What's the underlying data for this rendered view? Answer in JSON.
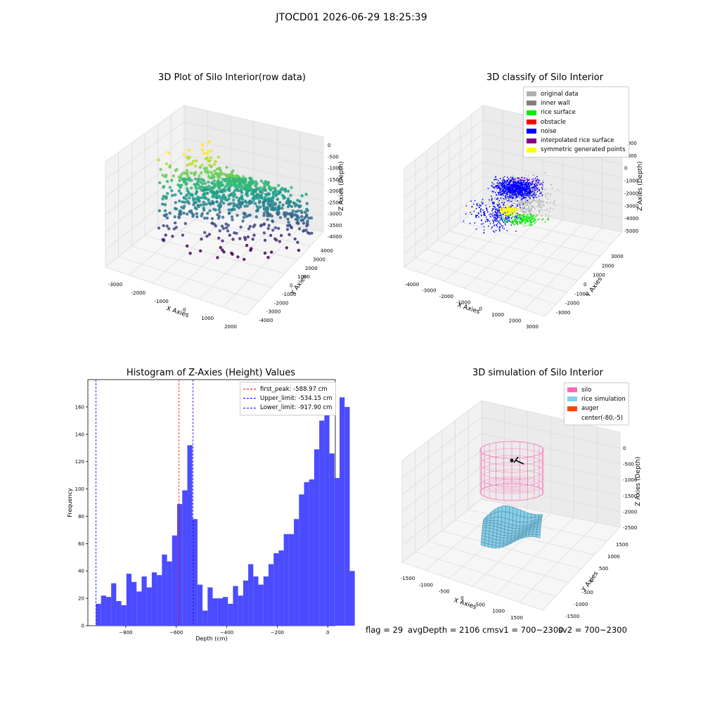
{
  "title": "JTOCD01 2026-06-29 18:25:39",
  "panels": {
    "raw": {
      "title": "3D Plot of Silo Interior(row data)",
      "x_label": "X Axies",
      "y_label": "Y Axies",
      "z_label": "Z Axies (Depth)",
      "x_ticks": [
        "-3000",
        "-2000",
        "-1000",
        "0",
        "1000",
        "2000"
      ],
      "y_ticks": [
        "4000",
        "3000",
        "2000",
        "1000",
        "0",
        "-1000",
        "-2000",
        "-3000",
        "-4000"
      ],
      "z_ticks": [
        "0",
        "-500",
        "-1000",
        "-1500",
        "-2000",
        "-2500",
        "-3000",
        "-3500",
        "-4000"
      ]
    },
    "classify": {
      "title": "3D classify of Silo Interior",
      "x_label": "X Axies",
      "y_label": "Y Axies",
      "z_label": "Z Axies (Depth)",
      "x_ticks": [
        "-4000",
        "-3000",
        "-2000",
        "-1000",
        "0",
        "1000",
        "2000",
        "3000"
      ],
      "y_ticks": [
        "3000",
        "2000",
        "1000",
        "0",
        "-1000",
        "-2000",
        "-3000"
      ],
      "z_ticks": [
        "2000",
        "1000",
        "0",
        "-1000",
        "-2000",
        "-3000",
        "-4000",
        "-5000"
      ],
      "legend": [
        {
          "label": "original data",
          "color": "#b0b0b0"
        },
        {
          "label": "inner wall",
          "color": "#808080"
        },
        {
          "label": "rice surface",
          "color": "#00ee00"
        },
        {
          "label": "obstacle",
          "color": "#ff0000"
        },
        {
          "label": "noise",
          "color": "#0000ff"
        },
        {
          "label": "interpolated rice surface",
          "color": "#800080"
        },
        {
          "label": "symmetric generated points",
          "color": "#ffff00"
        }
      ]
    },
    "histogram": {
      "title": "Histogram of Z-Axies (Height) Values",
      "x_label": "Depth (cm)",
      "y_label": "Frequency",
      "legend": [
        {
          "label": "first_peak: -588.97 cm",
          "color": "#ff0000"
        },
        {
          "label": "Upper_limit: -534.15 cm",
          "color": "#0000ff"
        },
        {
          "label": "Lower_limit: -917.90 cm",
          "color": "#0000ff"
        }
      ]
    },
    "simulation": {
      "title": "3D simulation of Silo Interior",
      "x_label": "X Axies",
      "y_label": "Y Axies",
      "z_label": "Z Axies (Depth)",
      "x_ticks": [
        "-1500",
        "-1000",
        "-500",
        "0",
        "500",
        "1000",
        "1500"
      ],
      "y_ticks": [
        "1500",
        "1000",
        "500",
        "0",
        "-500",
        "-1000",
        "-1500"
      ],
      "z_ticks": [
        "0",
        "-500",
        "-1000",
        "-1500",
        "-2000",
        "-2500"
      ],
      "legend": [
        {
          "label": "silo",
          "color": "#ff69b4"
        },
        {
          "label": "rice simulation",
          "color": "#87ceeb"
        },
        {
          "label": "auger",
          "color": "#ff4500"
        },
        {
          "label": "center(-80,-5)",
          "color": "#ffffff"
        }
      ]
    }
  },
  "footer": {
    "flag": "flag = 29",
    "avg": "avgDepth = 2106 cmsv1 = 700~2300",
    "sv2": "sv2 = 700~2300"
  },
  "chart_data": {
    "type": "bar",
    "title": "Histogram of Z-Axies (Height) Values",
    "xlabel": "Depth (cm)",
    "ylabel": "Frequency",
    "xlim": [
      -950,
      30
    ],
    "ylim": [
      0,
      180
    ],
    "x_ticks": [
      -800,
      -600,
      -400,
      -200,
      0
    ],
    "y_ticks": [
      0,
      20,
      40,
      60,
      80,
      100,
      120,
      140,
      160
    ],
    "bin_start": -918,
    "bin_width": 20.1,
    "values": [
      16,
      22,
      21,
      31,
      18,
      15,
      38,
      32,
      25,
      36,
      28,
      39,
      37,
      52,
      47,
      66,
      89,
      99,
      132,
      78,
      30,
      11,
      28,
      20,
      20,
      21,
      16,
      29,
      22,
      33,
      45,
      36,
      30,
      36,
      45,
      53,
      55,
      67,
      67,
      78,
      96,
      105,
      107,
      129,
      150,
      172,
      126,
      108,
      167,
      160,
      40
    ],
    "lines": [
      {
        "name": "first_peak",
        "x": -588.97,
        "color": "#ff0000"
      },
      {
        "name": "Upper_limit",
        "x": -534.15,
        "color": "#0000ff"
      },
      {
        "name": "Lower_limit",
        "x": -917.9,
        "color": "#0000ff"
      }
    ],
    "grid": false,
    "legend_position": "top-right"
  }
}
